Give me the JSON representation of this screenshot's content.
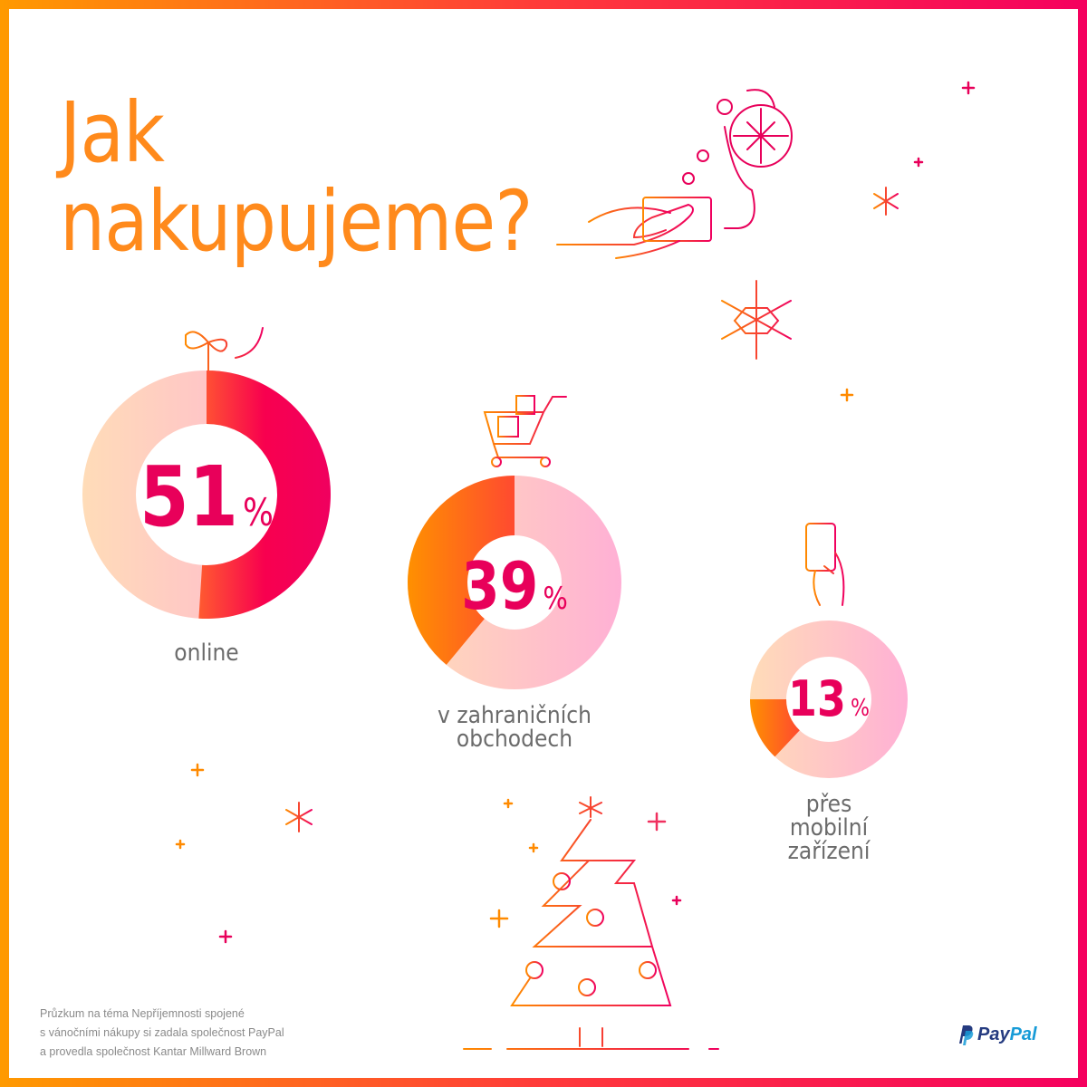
{
  "title": [
    "Jak",
    "nakupujeme?"
  ],
  "chart_data": [
    {
      "type": "pie",
      "variant": "donut",
      "label": "online",
      "value": 51,
      "unit": "%",
      "start": "top",
      "direction": "clockwise"
    },
    {
      "type": "pie",
      "variant": "donut",
      "label": "v zahraničních obchodech",
      "label_lines": [
        "v zahraničních",
        "obchodech"
      ],
      "value": 39,
      "unit": "%",
      "start": "top",
      "direction": "counterclockwise"
    },
    {
      "type": "pie",
      "variant": "donut",
      "label": "přes mobilní zařízení",
      "label_lines": [
        "přes",
        "mobilní",
        "zařízení"
      ],
      "value": 13,
      "unit": "%",
      "start": "left",
      "direction": "counterclockwise"
    }
  ],
  "footer": [
    "Průzkum na téma Nepříjemnosti spojené",
    "s vánočními nákupy si zadala společnost PayPal",
    "a provedla společnost Kantar Millward Brown"
  ],
  "logo": {
    "pay": "Pay",
    "pal": "Pal"
  },
  "colors": {
    "orange": "#ff8a00",
    "pink": "#f5005f",
    "magenta": "#e8005a"
  }
}
